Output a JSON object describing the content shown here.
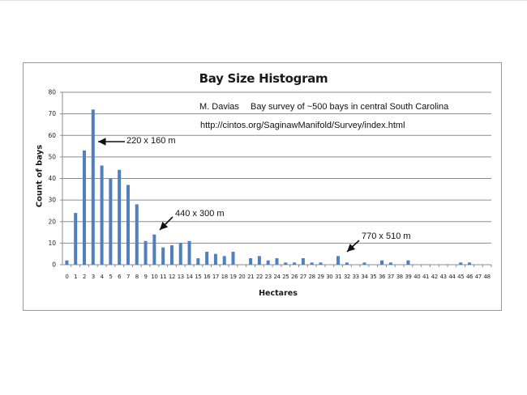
{
  "chart_data": {
    "type": "bar",
    "title": "Bay Size Histogram",
    "xlabel": "Hectares",
    "ylabel": "Count of bays",
    "ylim": [
      0,
      80
    ],
    "yticks": [
      0,
      10,
      20,
      30,
      40,
      50,
      60,
      70,
      80
    ],
    "grid": true,
    "legend": null,
    "categories": [
      "0",
      "1",
      "2",
      "3",
      "4",
      "5",
      "6",
      "7",
      "8",
      "9",
      "10",
      "11",
      "12",
      "13",
      "14",
      "15",
      "16",
      "17",
      "18",
      "19",
      "20",
      "21",
      "22",
      "23",
      "24",
      "25",
      "26",
      "27",
      "28",
      "29",
      "30",
      "31",
      "32",
      "33",
      "34",
      "35",
      "36",
      "37",
      "38",
      "39",
      "40",
      "41",
      "42",
      "43",
      "44",
      "45",
      "46",
      "47",
      "48"
    ],
    "values": [
      2,
      24,
      53,
      72,
      46,
      40,
      44,
      37,
      28,
      11,
      14,
      8,
      9,
      10,
      11,
      3,
      6,
      5,
      4,
      6,
      0,
      3,
      4,
      2,
      3,
      1,
      1,
      3,
      1,
      1,
      0,
      4,
      1,
      0,
      1,
      0,
      2,
      1,
      0,
      2,
      0,
      0,
      0,
      0,
      0,
      1,
      1,
      0,
      0
    ],
    "annotations": [
      {
        "text": "220 x 160 m",
        "x": "3",
        "y": 57
      },
      {
        "text": "440 x 300 m",
        "x": "10",
        "y": 14
      },
      {
        "text": "770 x 510 m",
        "x": "31",
        "y": 4
      }
    ],
    "text_notes": [
      "M. Davias   Bay survey of ~500 bays in central South Carolina",
      "http://cintos.org/SaginawManifold/Survey/index.html"
    ],
    "bar_color": "#4f7fbd"
  },
  "chart": {
    "title": "Bay Size Histogram",
    "xlabel": "Hectares",
    "ylabel": "Count of bays",
    "author": "M. Davias",
    "description": "Bay survey of ~500 bays in central South Carolina",
    "url": "http://cintos.org/SaginawManifold/Survey/index.html",
    "annotation_1": "220 x 160 m",
    "annotation_2": "440 x 300 m",
    "annotation_3": "770 x 510 m"
  }
}
